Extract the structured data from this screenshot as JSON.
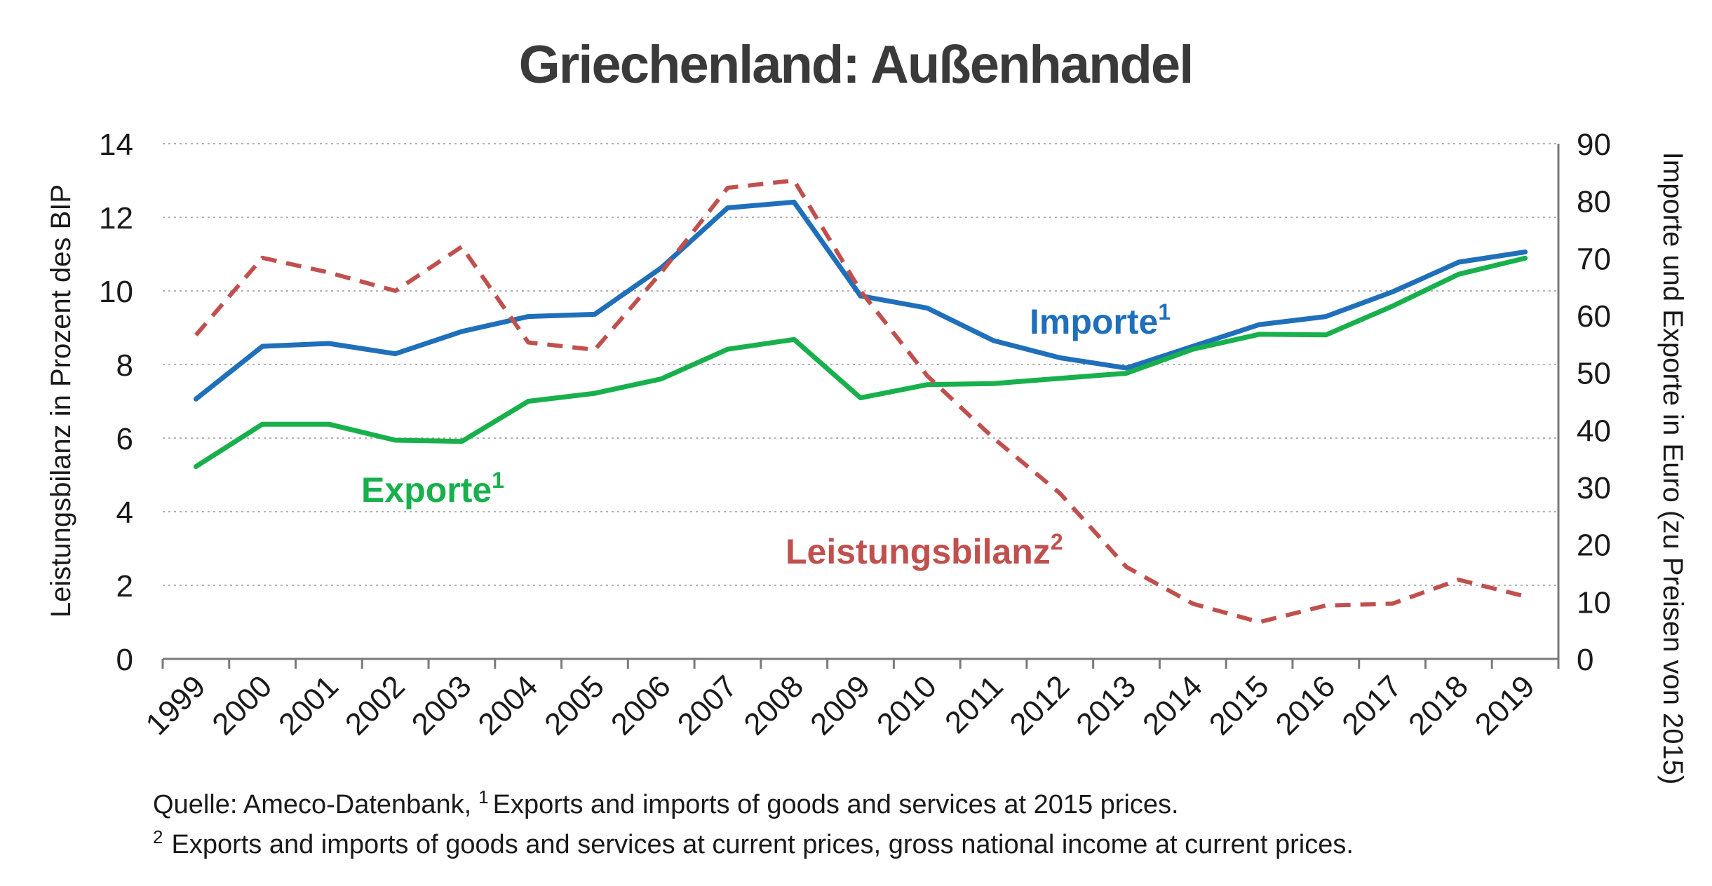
{
  "chart_data": {
    "type": "line",
    "title": "Griechenland: Außenhandel",
    "categories": [
      "1999",
      "2000",
      "2001",
      "2002",
      "2003",
      "2004",
      "2005",
      "2006",
      "2007",
      "2008",
      "2009",
      "2010",
      "2011",
      "2012",
      "2013",
      "2014",
      "2015",
      "2016",
      "2017",
      "2018",
      "2019"
    ],
    "ylabel_left": "Leistungsbilanz in Prozent des BIP",
    "ylabel_right": "Importe und Exporte in Euro (zu Preisen von 2015)",
    "ylim_left": [
      0,
      14
    ],
    "yticks_left": [
      "0",
      "2",
      "4",
      "6",
      "8",
      "10",
      "12",
      "14"
    ],
    "ylim_right": [
      0,
      90
    ],
    "yticks_right": [
      "0",
      "10",
      "20",
      "30",
      "40",
      "50",
      "60",
      "70",
      "80",
      "90"
    ],
    "grid": "horizontal dotted",
    "series": [
      {
        "name": "Importe",
        "sup": "1",
        "axis": "right",
        "color": "#1f6fba",
        "style": "solid",
        "values": [
          45.4,
          54.6,
          55.1,
          53.3,
          57.2,
          59.8,
          60.2,
          68.3,
          78.8,
          79.8,
          63.4,
          61.3,
          55.6,
          52.6,
          50.8,
          54.6,
          58.4,
          59.8,
          64.1,
          69.3,
          71.1
        ]
      },
      {
        "name": "Exporte",
        "sup": "1",
        "axis": "right",
        "color": "#18b04c",
        "style": "solid",
        "values": [
          33.6,
          41.0,
          41.0,
          38.2,
          38.0,
          45.0,
          46.4,
          48.9,
          54.1,
          55.8,
          45.6,
          47.9,
          48.1,
          49.0,
          49.9,
          54.1,
          56.7,
          56.6,
          61.6,
          67.2,
          70.0
        ]
      },
      {
        "name": "Leistungsbilanz",
        "sup": "2",
        "axis": "left",
        "color": "#c0504d",
        "style": "dashed",
        "values": [
          8.8,
          10.9,
          10.5,
          10.0,
          11.2,
          8.6,
          8.4,
          10.5,
          12.8,
          13.0,
          10.0,
          7.7,
          6.0,
          4.5,
          2.5,
          1.5,
          1.0,
          1.45,
          1.5,
          2.15,
          1.7
        ]
      }
    ],
    "footnote_line1_source": "Quelle: Ameco-Datenbank,",
    "footnote_line1_sup": "1",
    "footnote_line1_text": "Exports and imports of goods and services at 2015 prices.",
    "footnote_line2_sup": "2",
    "footnote_line2_text": "Exports and imports of goods and services at current prices, gross national income at current prices."
  }
}
